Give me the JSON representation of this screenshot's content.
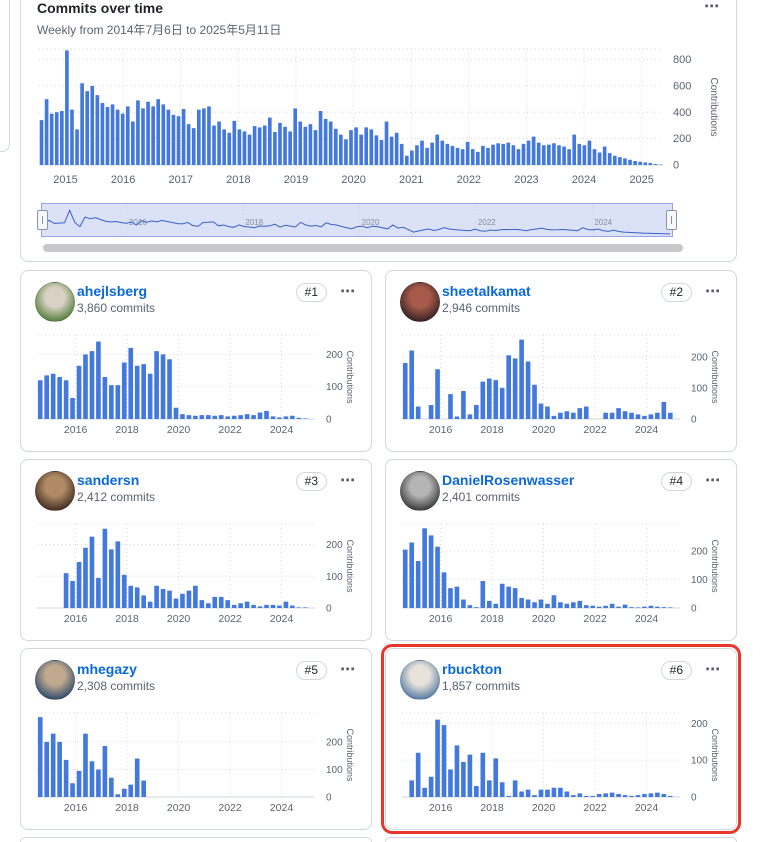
{
  "panel": {
    "title": "Commits over time",
    "subtitle": "Weekly from 2014年7月6日 to 2025年5月11日",
    "menu_icon": "⋯"
  },
  "colors": {
    "bar_fill": "#4379dd",
    "bar_stroke": "#2f5fc0",
    "link_blue": "#0969da",
    "text_muted": "#59636e",
    "grid": "#d4dae0",
    "baseline": "#d0d7de",
    "brush_fill": "#dbe2f8",
    "brush_border": "#97a6de",
    "brush_line": "#3a5fc6",
    "highlight_red": "#e8362a",
    "scrollbar": "#c6c8ca"
  },
  "brush": {
    "year_labels": [
      2016,
      2018,
      2020,
      2022,
      2024
    ]
  },
  "chart_data": [
    {
      "type": "bar",
      "owner": "repository",
      "title": "Commits over time",
      "subtitle": "Weekly from 2014年7月6日 to 2025年5月11日",
      "xlabel": "",
      "ylabel": "Contributions",
      "yticks": [
        0,
        200,
        400,
        600,
        800
      ],
      "ymax": 880,
      "x_start": 2014.54,
      "x_end": 2025.37,
      "year_ticks": [
        2015,
        2016,
        2017,
        2018,
        2019,
        2020,
        2021,
        2022,
        2023,
        2024,
        2025
      ],
      "grid": "dotted",
      "legend": "none",
      "values": [
        340,
        500,
        390,
        400,
        410,
        870,
        420,
        270,
        620,
        560,
        600,
        530,
        470,
        440,
        460,
        420,
        390,
        445,
        330,
        490,
        430,
        480,
        445,
        500,
        460,
        420,
        380,
        370,
        425,
        310,
        280,
        420,
        430,
        445,
        300,
        330,
        270,
        245,
        335,
        270,
        255,
        230,
        295,
        285,
        300,
        360,
        250,
        320,
        290,
        255,
        430,
        330,
        290,
        310,
        265,
        410,
        350,
        330,
        275,
        230,
        195,
        265,
        285,
        230,
        285,
        270,
        225,
        190,
        330,
        215,
        245,
        160,
        70,
        110,
        150,
        185,
        130,
        170,
        230,
        185,
        160,
        145,
        130,
        120,
        175,
        120,
        100,
        145,
        130,
        155,
        165,
        160,
        170,
        150,
        120,
        160,
        185,
        215,
        170,
        150,
        155,
        165,
        150,
        140,
        120,
        230,
        160,
        150,
        185,
        120,
        95,
        140,
        90,
        70,
        60,
        50,
        40,
        30,
        25,
        20,
        15,
        8,
        4
      ]
    },
    {
      "type": "bar",
      "owner": "ahejlsberg",
      "ylabel": "Contributions",
      "yticks": [
        0,
        100,
        200
      ],
      "ymax": 260,
      "x_start": 2014.5,
      "x_end": 2025.3,
      "year_ticks": [
        2016,
        2018,
        2020,
        2022,
        2024
      ],
      "values": [
        120,
        135,
        140,
        130,
        120,
        65,
        165,
        200,
        210,
        240,
        130,
        105,
        105,
        175,
        220,
        165,
        170,
        140,
        210,
        200,
        185,
        35,
        15,
        12,
        10,
        12,
        12,
        10,
        12,
        8,
        10,
        12,
        15,
        12,
        20,
        25,
        8,
        5,
        8,
        10,
        4,
        2,
        0
      ]
    },
    {
      "type": "bar",
      "owner": "sheetalkamat",
      "ylabel": "Contributions",
      "yticks": [
        0,
        100,
        200
      ],
      "ymax": 270,
      "x_start": 2014.5,
      "x_end": 2025.3,
      "year_ticks": [
        2016,
        2018,
        2020,
        2022,
        2024
      ],
      "values": [
        180,
        220,
        40,
        0,
        45,
        160,
        0,
        80,
        8,
        90,
        15,
        45,
        120,
        130,
        125,
        100,
        205,
        195,
        255,
        185,
        110,
        50,
        40,
        10,
        20,
        25,
        20,
        35,
        40,
        0,
        0,
        20,
        20,
        35,
        25,
        20,
        15,
        10,
        15,
        20,
        55,
        20,
        0
      ]
    },
    {
      "type": "bar",
      "owner": "sandersn",
      "ylabel": "Contributions",
      "yticks": [
        0,
        100,
        200
      ],
      "ymax": 265,
      "x_start": 2014.5,
      "x_end": 2025.3,
      "year_ticks": [
        2016,
        2018,
        2020,
        2022,
        2024
      ],
      "values": [
        0,
        0,
        0,
        0,
        110,
        85,
        145,
        190,
        225,
        95,
        250,
        185,
        210,
        105,
        70,
        65,
        40,
        20,
        70,
        60,
        55,
        30,
        45,
        55,
        70,
        25,
        15,
        35,
        35,
        25,
        10,
        15,
        20,
        10,
        5,
        10,
        10,
        8,
        20,
        8,
        2,
        2,
        0
      ]
    },
    {
      "type": "bar",
      "owner": "DanielRosenwasser",
      "ylabel": "Contributions",
      "yticks": [
        0,
        100,
        200
      ],
      "ymax": 295,
      "x_start": 2014.5,
      "x_end": 2025.3,
      "year_ticks": [
        2016,
        2018,
        2020,
        2022,
        2024
      ],
      "values": [
        205,
        230,
        165,
        280,
        255,
        215,
        125,
        70,
        75,
        30,
        10,
        3,
        95,
        25,
        15,
        85,
        75,
        70,
        35,
        30,
        20,
        30,
        15,
        45,
        20,
        15,
        20,
        25,
        10,
        8,
        5,
        8,
        15,
        5,
        12,
        3,
        2,
        5,
        8,
        5,
        3,
        2,
        0
      ]
    },
    {
      "type": "bar",
      "owner": "mhegazy",
      "ylabel": "Contributions",
      "yticks": [
        0,
        100,
        200
      ],
      "ymax": 305,
      "x_start": 2014.5,
      "x_end": 2025.3,
      "year_ticks": [
        2016,
        2018,
        2020,
        2022,
        2024
      ],
      "values": [
        290,
        200,
        230,
        200,
        135,
        50,
        95,
        230,
        130,
        100,
        185,
        70,
        10,
        30,
        45,
        140,
        60,
        0,
        0,
        0,
        0,
        0,
        0,
        0,
        0,
        0,
        0,
        0,
        0,
        0,
        0,
        0,
        0,
        0,
        0,
        0,
        0,
        0,
        0,
        0,
        0,
        0,
        0
      ]
    },
    {
      "type": "bar",
      "owner": "rbuckton",
      "ylabel": "Contributions",
      "yticks": [
        0,
        100,
        200
      ],
      "ymax": 228,
      "x_start": 2014.5,
      "x_end": 2025.3,
      "year_ticks": [
        2016,
        2018,
        2020,
        2022,
        2024
      ],
      "values": [
        0,
        45,
        120,
        25,
        55,
        210,
        195,
        75,
        140,
        95,
        115,
        30,
        120,
        45,
        105,
        40,
        3,
        45,
        15,
        20,
        5,
        20,
        20,
        25,
        25,
        15,
        5,
        10,
        3,
        3,
        8,
        10,
        12,
        8,
        5,
        3,
        5,
        8,
        10,
        12,
        8,
        3,
        0
      ]
    }
  ],
  "cards": [
    {
      "username": "ahejlsberg",
      "commits": "3,860 commits",
      "rank": "#1",
      "menu_icon": "⋯",
      "chart_index": 1,
      "highlighted": false,
      "avatar_colors": [
        "#d9d2c4",
        "#57803f"
      ]
    },
    {
      "username": "sheetalkamat",
      "commits": "2,946 commits",
      "rank": "#2",
      "menu_icon": "⋯",
      "chart_index": 2,
      "highlighted": false,
      "avatar_colors": [
        "#a85a4a",
        "#3a2426"
      ]
    },
    {
      "username": "sandersn",
      "commits": "2,412 commits",
      "rank": "#3",
      "menu_icon": "⋯",
      "chart_index": 3,
      "highlighted": false,
      "avatar_colors": [
        "#b08a64",
        "#463125"
      ]
    },
    {
      "username": "DanielRosenwasser",
      "commits": "2,401 commits",
      "rank": "#4",
      "menu_icon": "⋯",
      "chart_index": 4,
      "highlighted": false,
      "avatar_colors": [
        "#b5b5b5",
        "#3f3f3f"
      ]
    },
    {
      "username": "mhegazy",
      "commits": "2,308 commits",
      "rank": "#5",
      "menu_icon": "⋯",
      "chart_index": 5,
      "highlighted": false,
      "avatar_colors": [
        "#c0a98f",
        "#35506e"
      ]
    },
    {
      "username": "rbuckton",
      "commits": "1,857 commits",
      "rank": "#6",
      "menu_icon": "⋯",
      "chart_index": 6,
      "highlighted": true,
      "avatar_colors": [
        "#e8e3da",
        "#5b7fa6"
      ]
    }
  ]
}
